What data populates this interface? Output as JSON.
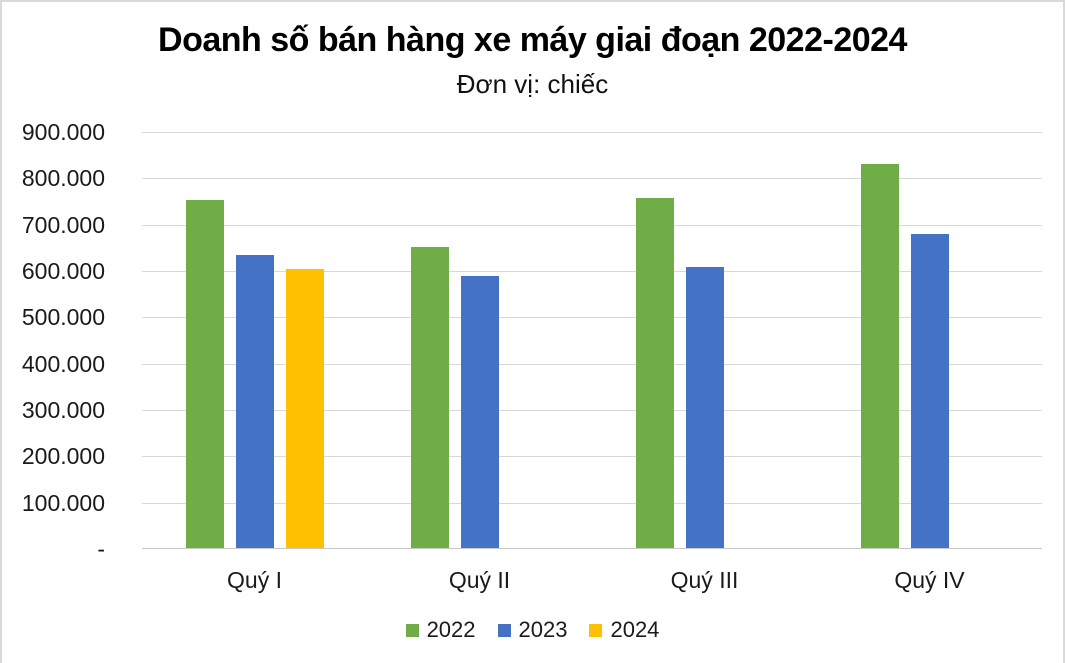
{
  "page": {
    "background_color": "#ffffff",
    "frame_border_color": "#d9d9d9"
  },
  "chart_data": {
    "type": "bar",
    "title": "Doanh số bán hàng xe máy giai đoạn 2022-2024",
    "subtitle": "Đơn vị: chiếc",
    "categories": [
      "Quý I",
      "Quý II",
      "Quý III",
      "Quý IV"
    ],
    "series": [
      {
        "name": "2022",
        "color": "#70AD47",
        "values": [
          751000,
          650000,
          756000,
          828000
        ]
      },
      {
        "name": "2023",
        "color": "#4472C4",
        "values": [
          632000,
          586000,
          607000,
          677000
        ]
      },
      {
        "name": "2024",
        "color": "#FFC000",
        "values": [
          602000,
          null,
          null,
          null
        ]
      }
    ],
    "y_axis": {
      "min": 0,
      "max": 900000,
      "step": 100000,
      "tick_labels": [
        "-",
        "100.000",
        "200.000",
        "300.000",
        "400.000",
        "500.000",
        "600.000",
        "700.000",
        "800.000",
        "900.000"
      ]
    },
    "grid": true,
    "gridline_color": "#d9d9d9",
    "axis_line_color": "#c9c9c9",
    "legend_position": "bottom"
  }
}
